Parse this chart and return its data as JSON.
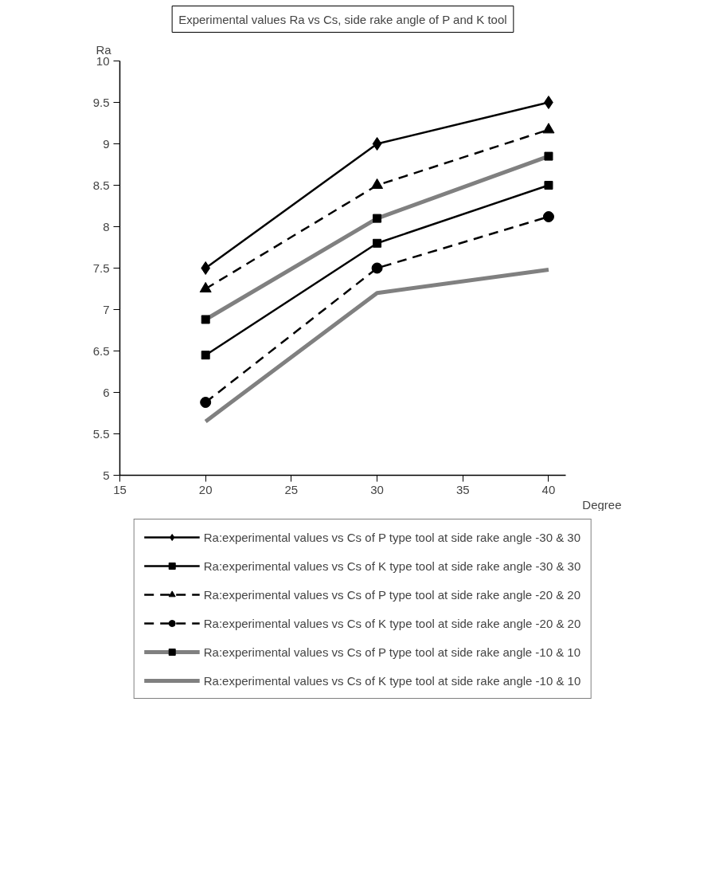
{
  "chart_data": {
    "type": "line",
    "title": "Experimental values Ra vs Cs, side rake angle of P and K tool",
    "xlabel": "Degree",
    "ylabel": "Ra",
    "x": [
      20,
      30,
      40
    ],
    "series": [
      {
        "name": "Ra:experimental values vs Cs of P type tool at side rake angle -30 & 30",
        "color": "#000000",
        "values": [
          7.5,
          9.0,
          9.5
        ],
        "marker": "diamond",
        "line_style": "solid"
      },
      {
        "name": "Ra:experimental values vs Cs of K type tool at side rake angle -30 & 30",
        "color": "#000000",
        "values": [
          6.45,
          7.8,
          8.5
        ],
        "marker": "square",
        "line_style": "solid"
      },
      {
        "name": "Ra:experimental values vs Cs of P type tool at side rake angle -20 & 20",
        "color": "#000000",
        "values": [
          7.25,
          8.5,
          9.17
        ],
        "marker": "triangle",
        "line_style": "dashed"
      },
      {
        "name": "Ra:experimental values vs Cs of K type tool at side rake angle -20 & 20",
        "color": "#000000",
        "values": [
          5.88,
          7.5,
          8.12
        ],
        "marker": "circle",
        "line_style": "dashed"
      },
      {
        "name": "Ra:experimental values vs Cs of P type tool at side rake angle -10 & 10",
        "color": "#808080",
        "values": [
          6.88,
          8.1,
          8.85
        ],
        "marker": "square",
        "line_style": "solid"
      },
      {
        "name": "Ra:experimental values vs Cs of K type tool at side rake angle -10 & 10",
        "color": "#808080",
        "values": [
          5.65,
          7.2,
          7.48
        ],
        "marker": "none",
        "line_style": "solid"
      }
    ],
    "xlim": [
      15,
      41
    ],
    "xticks": [
      15,
      20,
      25,
      30,
      35,
      40
    ],
    "ylim": [
      5,
      10
    ],
    "yticks": [
      5,
      5.5,
      6,
      6.5,
      7,
      7.5,
      8,
      8.5,
      9,
      9.5,
      10
    ],
    "grid": false,
    "legend": "bottom"
  }
}
